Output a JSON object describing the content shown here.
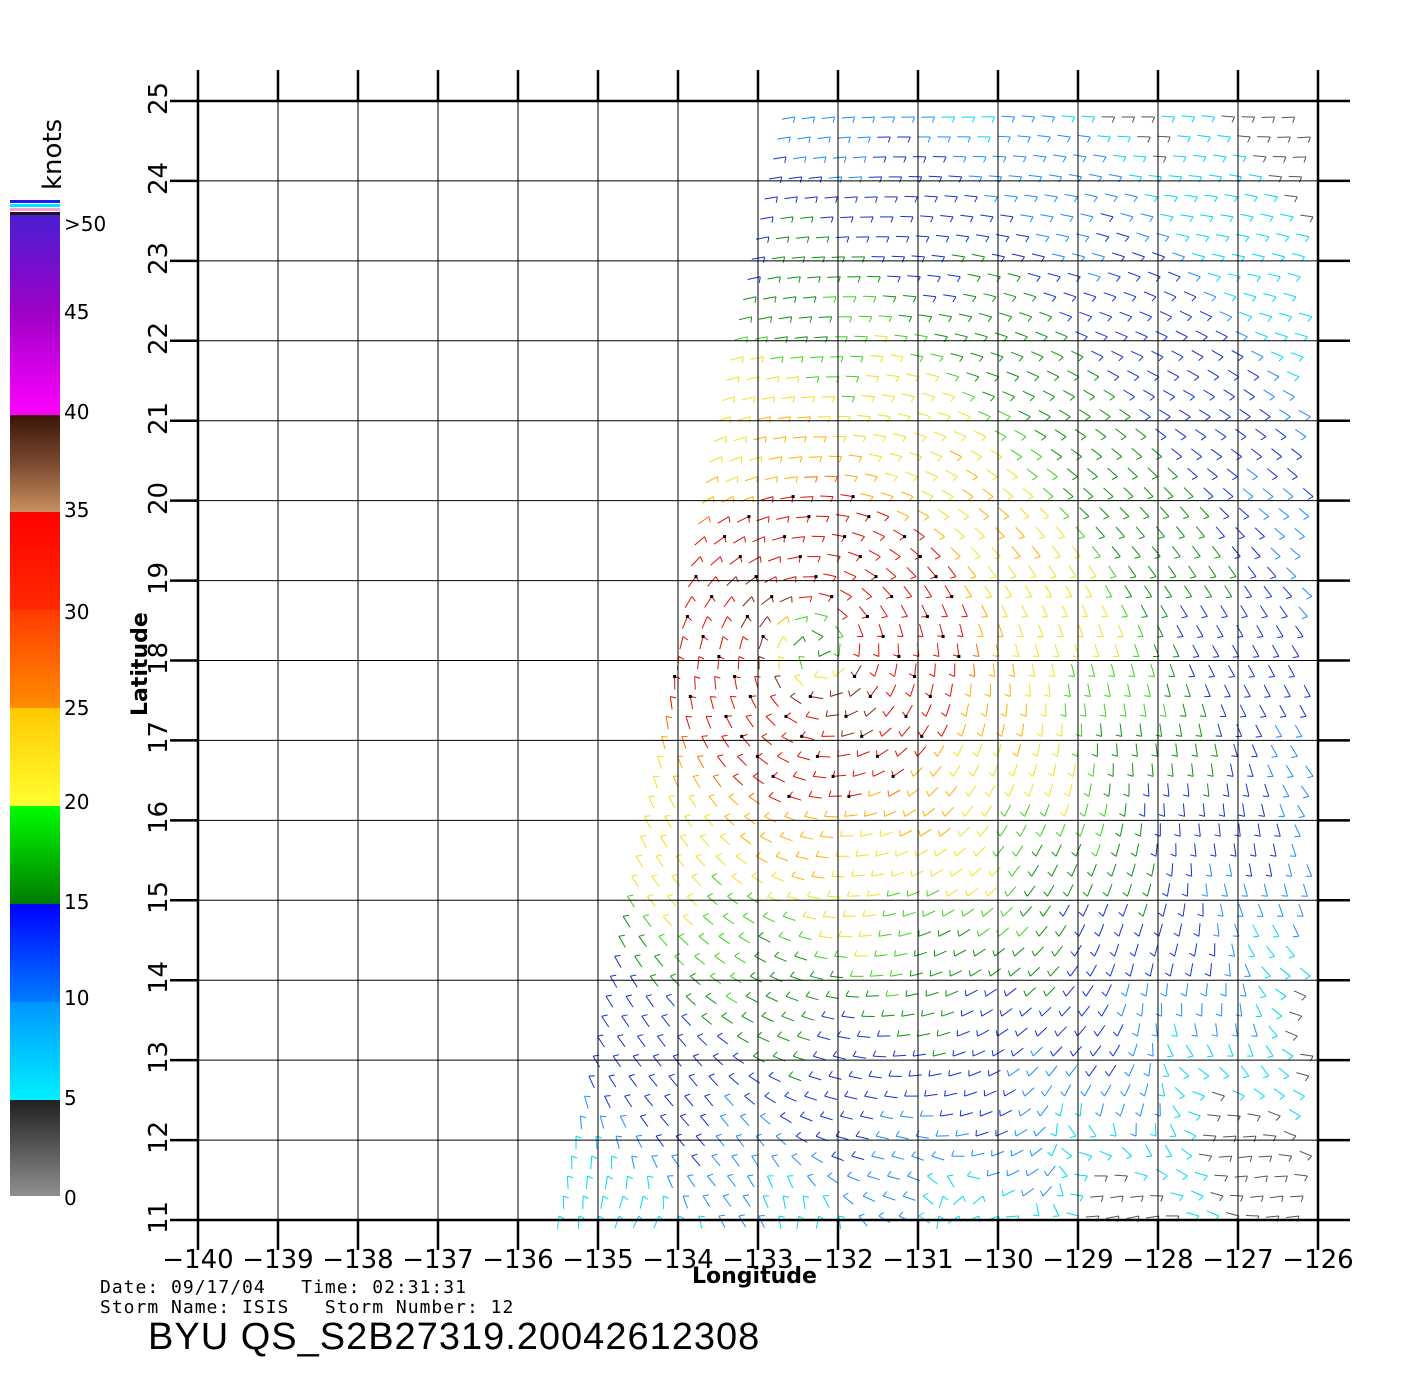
{
  "units_label": "knots",
  "colorbar": {
    "labels": [
      ">50",
      "45",
      "40",
      "35",
      "30",
      "25",
      "20",
      "15",
      "10",
      "5",
      "0"
    ],
    "colors": [
      "#1a1aff",
      "#00e5ff",
      "#ff00ff",
      "#5a2a10",
      "#ff0000",
      "#ffc800",
      "#00ff00",
      "#0000ff",
      "#00e5ff",
      "#888888"
    ]
  },
  "axes": {
    "xlabel": "Longitude",
    "ylabel": "Latitude",
    "x_ticks": [
      "−140",
      "−139",
      "−138",
      "−137",
      "−136",
      "−135",
      "−134",
      "−133",
      "−132",
      "−131",
      "−130",
      "−129",
      "−128",
      "−127",
      "−126"
    ],
    "y_ticks": [
      "11",
      "12",
      "13",
      "14",
      "15",
      "16",
      "17",
      "18",
      "19",
      "20",
      "21",
      "22",
      "23",
      "24",
      "25"
    ],
    "xlim": [
      -140,
      -126
    ],
    "ylim": [
      11,
      25
    ]
  },
  "info": {
    "date_line": "Date: 09/17/04   Time: 02:31:31",
    "storm_line": "Storm Name: ISIS   Storm Number: 12",
    "file_title": "BYU  QS_S2B27319.20042612308"
  },
  "wind_field": {
    "storm_center": [
      -132.3,
      18.2
    ],
    "swath_west_edge_lon_at_lat11": -135.5,
    "swath_west_edge_lon_at_lat25": -132.5
  }
}
